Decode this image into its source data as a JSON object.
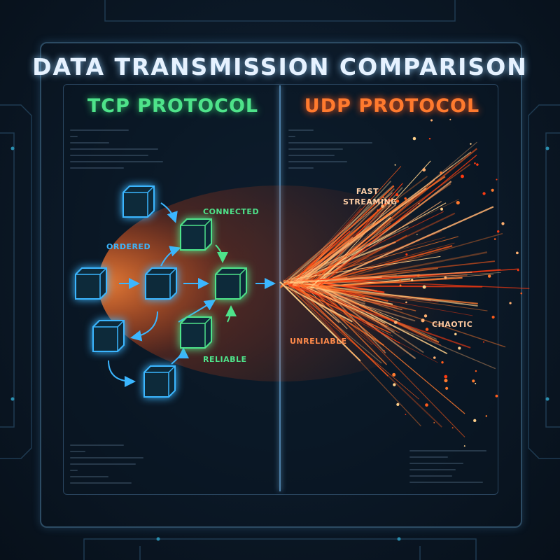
{
  "title": "DATA TRANSMISSION COMPARISON",
  "tcp": {
    "title": "TCP PROTOCOL",
    "labels": {
      "connected": "CONNECTED",
      "ordered": "ORDERED",
      "reliable": "RELIABLE"
    },
    "color": "#4ee38a",
    "packet_color": "#3bb6ff"
  },
  "udp": {
    "title": "UDP PROTOCOL",
    "labels": {
      "fast": "FAST",
      "streaming": "STREAMING",
      "chaotic": "CHAOTIC",
      "unreliable": "UNRELIABLE"
    },
    "color": "#ff7a2e"
  },
  "icons": [
    "packet-cube-icon",
    "arrow-icon",
    "particle-stream-icon",
    "circuit-trace-icon"
  ]
}
